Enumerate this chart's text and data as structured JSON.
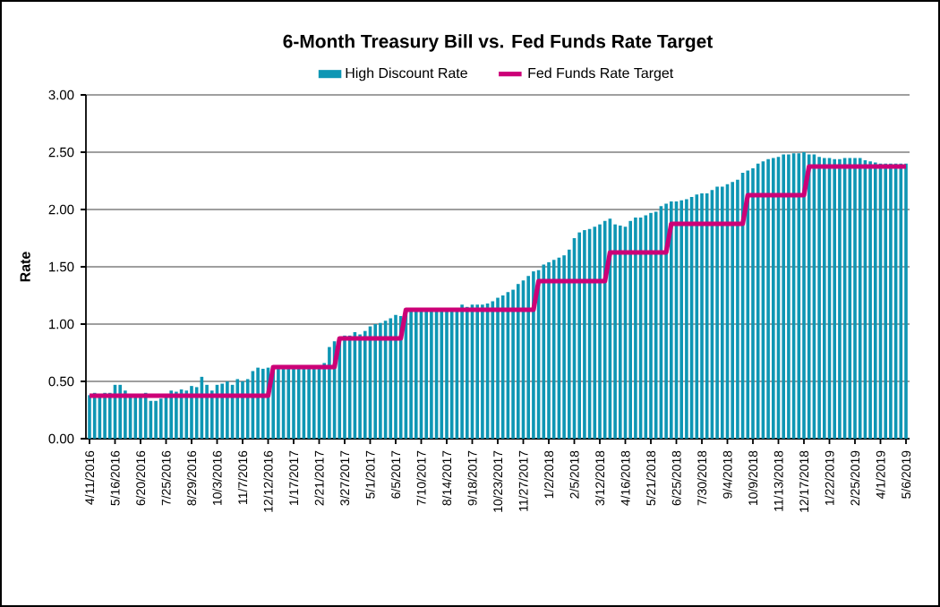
{
  "chart_data": {
    "type": "bar",
    "title": "6-Month  Treasury Bill vs. Fed Funds Rate Target",
    "ylabel": "Rate",
    "categories": [
      "4/11/2016",
      null,
      null,
      null,
      null,
      "5/16/2016",
      null,
      null,
      null,
      null,
      "6/20/2016",
      null,
      null,
      null,
      null,
      "7/25/2016",
      null,
      null,
      null,
      null,
      "8/29/2016",
      null,
      null,
      null,
      null,
      "10/3/2016",
      null,
      null,
      null,
      null,
      "11/7/2016",
      null,
      null,
      null,
      null,
      "12/12/2016",
      null,
      null,
      null,
      null,
      "1/17/2017",
      null,
      null,
      null,
      null,
      "2/21/2017",
      null,
      null,
      null,
      null,
      "3/27/2017",
      null,
      null,
      null,
      null,
      "5/1/2017",
      null,
      null,
      null,
      null,
      "6/5/2017",
      null,
      null,
      null,
      null,
      "7/10/2017",
      null,
      null,
      null,
      null,
      "8/14/2017",
      null,
      null,
      null,
      null,
      "9/18/2017",
      null,
      null,
      null,
      null,
      "10/23/2017",
      null,
      null,
      null,
      null,
      "11/27/2017",
      null,
      null,
      null,
      null,
      "1/2/2018",
      null,
      null,
      null,
      null,
      "2/5/2018",
      null,
      null,
      null,
      null,
      "3/12/2018",
      null,
      null,
      null,
      null,
      "4/16/2018",
      null,
      null,
      null,
      null,
      "5/21/2018",
      null,
      null,
      null,
      null,
      "6/25/2018",
      null,
      null,
      null,
      null,
      "7/30/2018",
      null,
      null,
      null,
      null,
      "9/4/2018",
      null,
      null,
      null,
      null,
      "10/9/2018",
      null,
      null,
      null,
      null,
      "11/13/2018",
      null,
      null,
      null,
      null,
      "12/17/2018",
      null,
      null,
      null,
      null,
      "1/22/2019",
      null,
      null,
      null,
      null,
      "2/25/2019",
      null,
      null,
      null,
      null,
      "4/1/2019",
      null,
      null,
      null,
      null,
      "5/6/2019"
    ],
    "series": [
      {
        "name": "High Discount Rate",
        "color": "#0e96b4",
        "values": [
          0.38,
          0.4,
          0.39,
          0.4,
          0.4,
          0.47,
          0.47,
          0.42,
          0.37,
          0.38,
          0.36,
          0.4,
          0.33,
          0.33,
          0.35,
          0.37,
          0.42,
          0.41,
          0.43,
          0.42,
          0.46,
          0.45,
          0.54,
          0.47,
          0.42,
          0.47,
          0.48,
          0.5,
          0.47,
          0.52,
          0.5,
          0.52,
          0.59,
          0.62,
          0.61,
          0.62,
          0.63,
          0.62,
          0.62,
          0.62,
          0.62,
          0.63,
          0.63,
          0.64,
          0.64,
          0.64,
          0.66,
          0.8,
          0.85,
          0.84,
          0.9,
          0.9,
          0.93,
          0.91,
          0.94,
          0.98,
          1.0,
          1.01,
          1.03,
          1.05,
          1.08,
          1.07,
          1.12,
          1.13,
          1.12,
          1.13,
          1.13,
          1.13,
          1.13,
          1.12,
          1.13,
          1.14,
          1.13,
          1.17,
          1.15,
          1.17,
          1.17,
          1.17,
          1.18,
          1.2,
          1.23,
          1.25,
          1.28,
          1.3,
          1.35,
          1.38,
          1.42,
          1.46,
          1.47,
          1.52,
          1.54,
          1.56,
          1.58,
          1.6,
          1.65,
          1.75,
          1.8,
          1.82,
          1.83,
          1.85,
          1.87,
          1.9,
          1.92,
          1.87,
          1.86,
          1.85,
          1.9,
          1.93,
          1.93,
          1.95,
          1.97,
          1.98,
          2.03,
          2.05,
          2.07,
          2.07,
          2.08,
          2.09,
          2.11,
          2.13,
          2.14,
          2.14,
          2.17,
          2.2,
          2.2,
          2.22,
          2.24,
          2.26,
          2.32,
          2.34,
          2.36,
          2.4,
          2.42,
          2.44,
          2.45,
          2.46,
          2.48,
          2.48,
          2.49,
          2.49,
          2.5,
          2.48,
          2.48,
          2.46,
          2.45,
          2.45,
          2.44,
          2.44,
          2.45,
          2.45,
          2.45,
          2.45,
          2.43,
          2.42,
          2.41,
          2.4,
          2.4,
          2.4,
          2.4,
          2.4,
          2.4
        ]
      },
      {
        "name": "Fed Funds Rate Target",
        "type": "line",
        "color": "#cc0077",
        "values": [
          0.375,
          0.375,
          0.375,
          0.375,
          0.375,
          0.375,
          0.375,
          0.375,
          0.375,
          0.375,
          0.375,
          0.375,
          0.375,
          0.375,
          0.375,
          0.375,
          0.375,
          0.375,
          0.375,
          0.375,
          0.375,
          0.375,
          0.375,
          0.375,
          0.375,
          0.375,
          0.375,
          0.375,
          0.375,
          0.375,
          0.375,
          0.375,
          0.375,
          0.375,
          0.375,
          0.375,
          0.625,
          0.625,
          0.625,
          0.625,
          0.625,
          0.625,
          0.625,
          0.625,
          0.625,
          0.625,
          0.625,
          0.625,
          0.625,
          0.875,
          0.875,
          0.875,
          0.875,
          0.875,
          0.875,
          0.875,
          0.875,
          0.875,
          0.875,
          0.875,
          0.875,
          0.875,
          1.125,
          1.125,
          1.125,
          1.125,
          1.125,
          1.125,
          1.125,
          1.125,
          1.125,
          1.125,
          1.125,
          1.125,
          1.125,
          1.125,
          1.125,
          1.125,
          1.125,
          1.125,
          1.125,
          1.125,
          1.125,
          1.125,
          1.125,
          1.125,
          1.125,
          1.125,
          1.375,
          1.375,
          1.375,
          1.375,
          1.375,
          1.375,
          1.375,
          1.375,
          1.375,
          1.375,
          1.375,
          1.375,
          1.375,
          1.375,
          1.625,
          1.625,
          1.625,
          1.625,
          1.625,
          1.625,
          1.625,
          1.625,
          1.625,
          1.625,
          1.625,
          1.625,
          1.875,
          1.875,
          1.875,
          1.875,
          1.875,
          1.875,
          1.875,
          1.875,
          1.875,
          1.875,
          1.875,
          1.875,
          1.875,
          1.875,
          1.875,
          2.125,
          2.125,
          2.125,
          2.125,
          2.125,
          2.125,
          2.125,
          2.125,
          2.125,
          2.125,
          2.125,
          2.125,
          2.375,
          2.375,
          2.375,
          2.375,
          2.375,
          2.375,
          2.375,
          2.375,
          2.375,
          2.375,
          2.375,
          2.375,
          2.375,
          2.375,
          2.375,
          2.375,
          2.375,
          2.375,
          2.375,
          2.375
        ]
      }
    ],
    "ylim": [
      0,
      3
    ],
    "yticks": [
      {
        "value": 0,
        "label": "0.00"
      },
      {
        "value": 0.5,
        "label": "0.50"
      },
      {
        "value": 1,
        "label": "1.00"
      },
      {
        "value": 1.5,
        "label": "1.50"
      },
      {
        "value": 2,
        "label": "2.00"
      },
      {
        "value": 2.5,
        "label": "2.50"
      },
      {
        "value": 3,
        "label": "3.00"
      }
    ],
    "grid": "y",
    "legend": "top"
  }
}
